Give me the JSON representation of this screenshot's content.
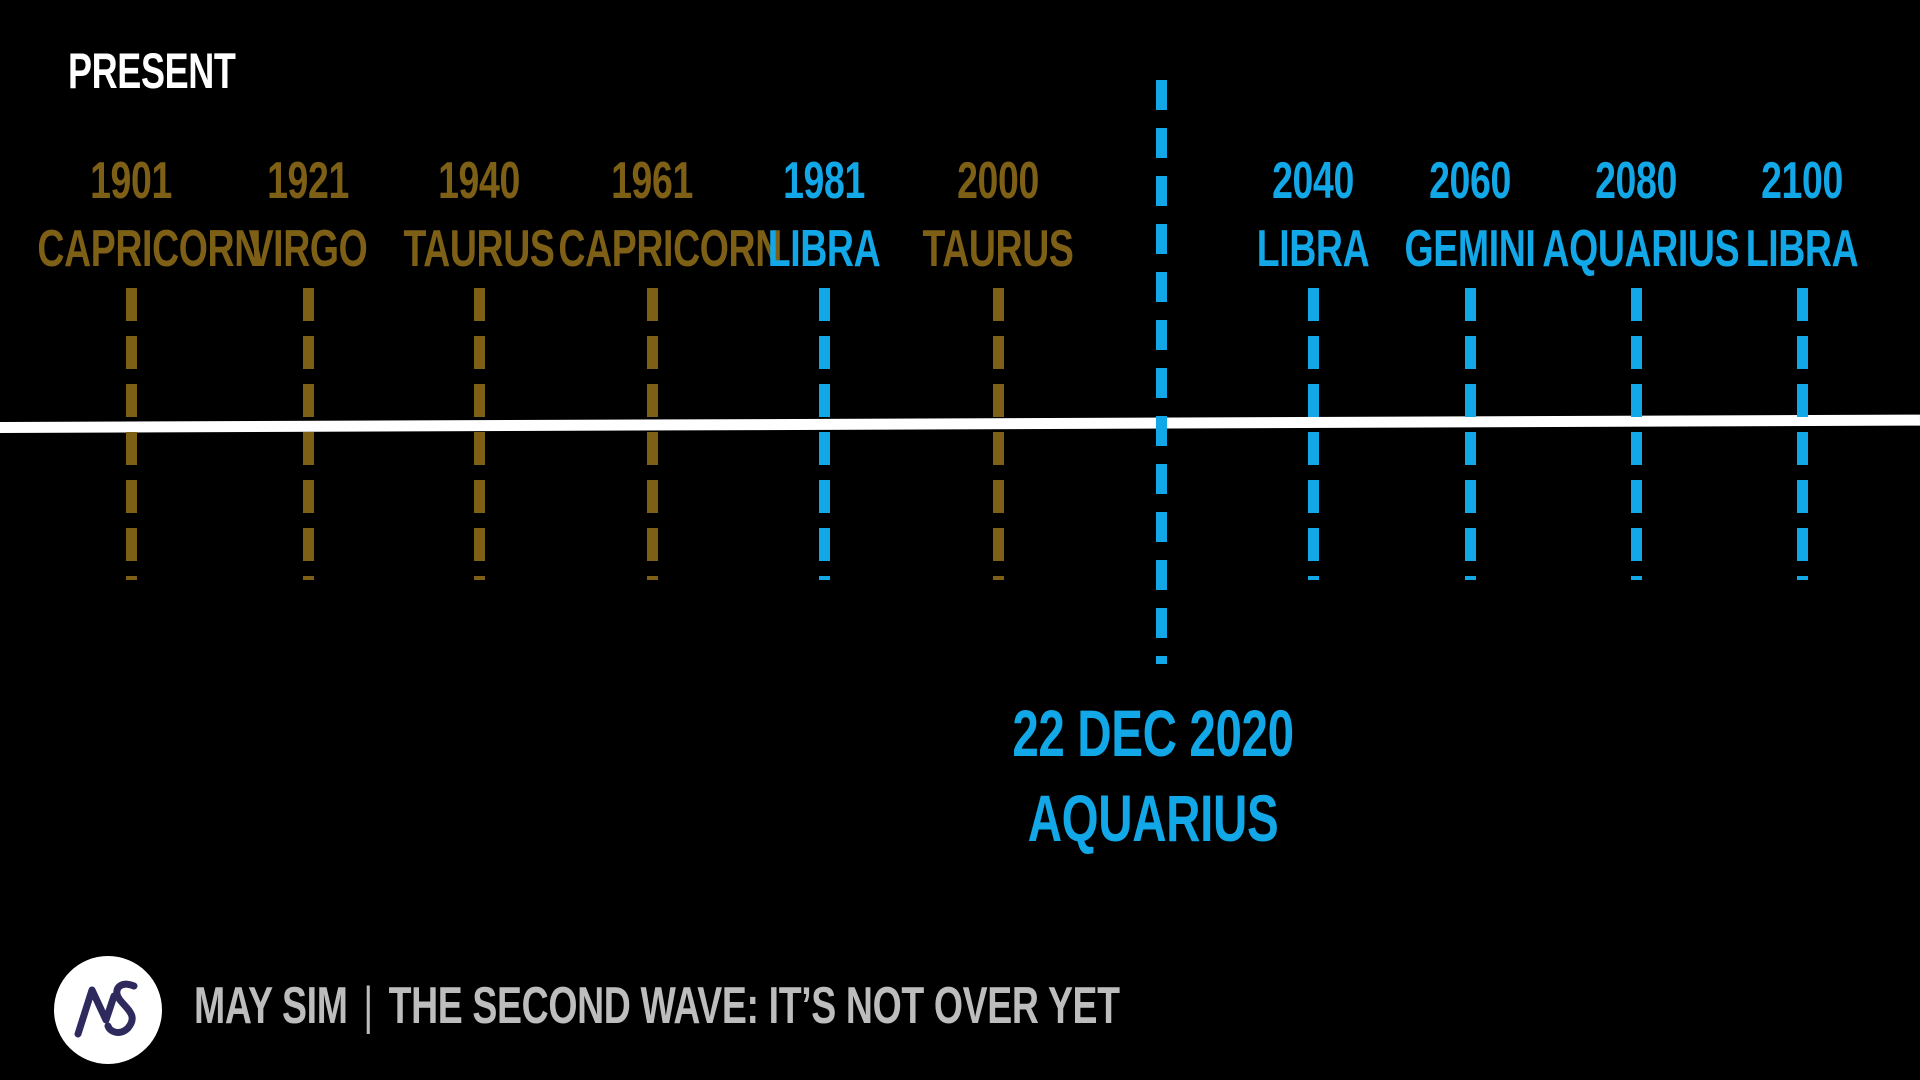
{
  "present_label": "PRESENT",
  "colors": {
    "past": "#7e5f16",
    "future": "#12a7e6",
    "axis": "#ffffff",
    "background": "#000000",
    "footer_text": "#bdbdbd"
  },
  "events": [
    {
      "year": "1901",
      "sign": "CAPRICORN",
      "era": "past"
    },
    {
      "year": "1921",
      "sign": "VIRGO",
      "era": "past"
    },
    {
      "year": "1940",
      "sign": "TAURUS",
      "era": "past"
    },
    {
      "year": "1961",
      "sign": "CAPRICORN",
      "era": "past"
    },
    {
      "year": "1981",
      "sign": "LIBRA",
      "era": "future"
    },
    {
      "year": "2000",
      "sign": "TAURUS",
      "era": "past"
    },
    {
      "year": "2040",
      "sign": "LIBRA",
      "era": "future"
    },
    {
      "year": "2060",
      "sign": "GEMINI",
      "era": "future"
    },
    {
      "year": "2080",
      "sign": "AQUARIUS",
      "era": "future"
    },
    {
      "year": "2100",
      "sign": "LIBRA",
      "era": "future"
    }
  ],
  "current": {
    "date": "22 DEC 2020",
    "sign": "AQUARIUS"
  },
  "footer": {
    "author": "MAY SIM",
    "separator": "|",
    "title": "THE SECOND WAVE: IT’S NOT OVER YET"
  },
  "logo": {
    "icon": "ms-monogram-logo"
  }
}
